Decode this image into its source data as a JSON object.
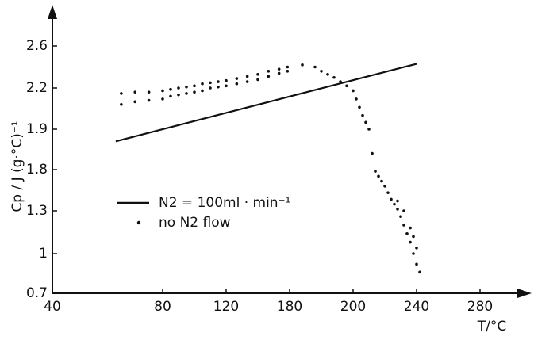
{
  "chart_data": {
    "type": "line-scatter",
    "y_label": "Cp / J (g·°C)⁻¹",
    "x_label": "T/°C",
    "xlim": [
      40,
      280
    ],
    "xticks": [
      40,
      80,
      120,
      180,
      200,
      240,
      280
    ],
    "ylim": [
      0.7,
      2.6
    ],
    "yticks": [
      0.7,
      1.0,
      1.3,
      1.8,
      1.9,
      2.2,
      2.6
    ],
    "series": [
      {
        "name": "N2 = 100ml · min⁻¹",
        "color": "#111111",
        "style": "line",
        "x": [
          63,
          240
        ],
        "values": [
          1.87,
          2.43
        ]
      },
      {
        "name": "no N2 flow",
        "color": "#111111",
        "style": "dots",
        "x": [
          65,
          70,
          75,
          80,
          85,
          90,
          95,
          100,
          105,
          110,
          115,
          120,
          130,
          140,
          150,
          160,
          170,
          178,
          184,
          65,
          70,
          75,
          80,
          85,
          90,
          95,
          100,
          105,
          110,
          115,
          120,
          130,
          140,
          150,
          160,
          170,
          178,
          188,
          190,
          192,
          194,
          196,
          198,
          200,
          202,
          204,
          206,
          208,
          210,
          212,
          214,
          216,
          218,
          220,
          222,
          224,
          226,
          228,
          230,
          232,
          234,
          236,
          238,
          240,
          242,
          228,
          232,
          236,
          240,
          238
        ],
        "values": [
          2.16,
          2.17,
          2.17,
          2.18,
          2.19,
          2.2,
          2.21,
          2.22,
          2.24,
          2.25,
          2.26,
          2.27,
          2.29,
          2.31,
          2.33,
          2.36,
          2.38,
          2.4,
          2.42,
          2.08,
          2.1,
          2.11,
          2.12,
          2.14,
          2.15,
          2.16,
          2.17,
          2.18,
          2.2,
          2.21,
          2.22,
          2.24,
          2.26,
          2.28,
          2.31,
          2.34,
          2.36,
          2.4,
          2.36,
          2.33,
          2.3,
          2.26,
          2.22,
          2.18,
          2.12,
          2.06,
          2.0,
          1.95,
          1.9,
          1.84,
          1.78,
          1.72,
          1.66,
          1.6,
          1.52,
          1.44,
          1.38,
          1.32,
          1.26,
          1.2,
          1.14,
          1.08,
          1.0,
          0.92,
          0.86,
          1.42,
          1.3,
          1.18,
          1.04,
          1.12
        ]
      }
    ]
  }
}
